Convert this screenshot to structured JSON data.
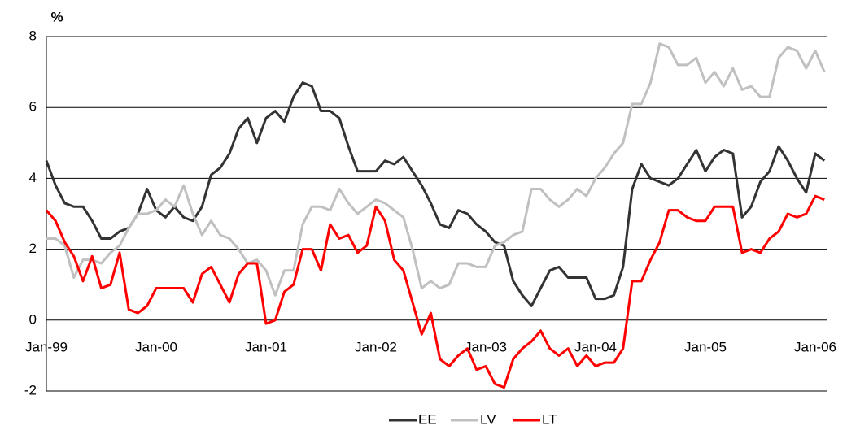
{
  "chart_data": {
    "type": "line",
    "y_label": "%",
    "categories": [
      "Jan-99",
      null,
      null,
      null,
      null,
      null,
      null,
      null,
      null,
      null,
      null,
      null,
      "Jan-00",
      null,
      null,
      null,
      null,
      null,
      null,
      null,
      null,
      null,
      null,
      null,
      "Jan-01",
      null,
      null,
      null,
      null,
      null,
      null,
      null,
      null,
      null,
      null,
      null,
      "Jan-02",
      null,
      null,
      null,
      null,
      null,
      null,
      null,
      null,
      null,
      null,
      null,
      "Jan-03",
      null,
      null,
      null,
      null,
      null,
      null,
      null,
      null,
      null,
      null,
      null,
      "Jan-04",
      null,
      null,
      null,
      null,
      null,
      null,
      null,
      null,
      null,
      null,
      null,
      "Jan-05",
      null,
      null,
      null,
      null,
      null,
      null,
      null,
      null,
      null,
      null,
      null,
      "Jan-06",
      null
    ],
    "series": [
      {
        "name": "EE",
        "color": "#333333",
        "values": [
          4.5,
          3.8,
          3.3,
          3.2,
          3.2,
          2.8,
          2.3,
          2.3,
          2.5,
          2.6,
          3.0,
          3.7,
          3.1,
          2.9,
          3.2,
          2.9,
          2.8,
          3.2,
          4.1,
          4.3,
          4.7,
          5.4,
          5.7,
          5.0,
          5.7,
          5.9,
          5.6,
          6.3,
          6.7,
          6.6,
          5.9,
          5.9,
          5.7,
          4.9,
          4.2,
          4.2,
          4.2,
          4.5,
          4.4,
          4.6,
          4.2,
          3.8,
          3.3,
          2.7,
          2.6,
          3.1,
          3.0,
          2.7,
          2.5,
          2.2,
          2.1,
          1.1,
          0.7,
          0.4,
          0.9,
          1.4,
          1.5,
          1.2,
          1.2,
          1.2,
          0.6,
          0.6,
          0.7,
          1.5,
          3.7,
          4.4,
          4.0,
          3.9,
          3.8,
          4.0,
          4.4,
          4.8,
          4.2,
          4.6,
          4.8,
          4.7,
          2.9,
          3.2,
          3.9,
          4.2,
          4.9,
          4.5,
          4.0,
          3.6,
          4.7,
          4.5
        ]
      },
      {
        "name": "LV",
        "color": "#c0c0c0",
        "values": [
          2.3,
          2.3,
          2.1,
          1.2,
          1.7,
          1.7,
          1.6,
          1.9,
          2.1,
          2.6,
          3.0,
          3.0,
          3.1,
          3.4,
          3.2,
          3.8,
          3.0,
          2.4,
          2.8,
          2.4,
          2.3,
          2.0,
          1.6,
          1.7,
          1.4,
          0.7,
          1.4,
          1.4,
          2.7,
          3.2,
          3.2,
          3.1,
          3.7,
          3.3,
          3.0,
          3.2,
          3.4,
          3.3,
          3.1,
          2.9,
          2.0,
          0.9,
          1.1,
          0.9,
          1.0,
          1.6,
          1.6,
          1.5,
          1.5,
          2.1,
          2.2,
          2.4,
          2.5,
          3.7,
          3.7,
          3.4,
          3.2,
          3.4,
          3.7,
          3.5,
          4.0,
          4.3,
          4.7,
          5.0,
          6.1,
          6.1,
          6.7,
          7.8,
          7.7,
          7.2,
          7.2,
          7.4,
          6.7,
          7.0,
          6.6,
          7.1,
          6.5,
          6.6,
          6.3,
          6.3,
          7.4,
          7.7,
          7.6,
          7.1,
          7.6,
          7.0
        ]
      },
      {
        "name": "LT",
        "color": "#ff0000",
        "values": [
          3.1,
          2.8,
          2.2,
          1.8,
          1.1,
          1.8,
          0.9,
          1.0,
          1.9,
          0.3,
          0.2,
          0.4,
          0.9,
          0.9,
          0.9,
          0.9,
          0.5,
          1.3,
          1.5,
          1.0,
          0.5,
          1.3,
          1.6,
          1.6,
          -0.1,
          0.0,
          0.8,
          1.0,
          2.0,
          2.0,
          1.4,
          2.7,
          2.3,
          2.4,
          1.9,
          2.1,
          3.2,
          2.8,
          1.7,
          1.4,
          0.5,
          -0.4,
          0.2,
          -1.1,
          -1.3,
          -1.0,
          -0.8,
          -1.4,
          -1.3,
          -1.8,
          -1.9,
          -1.1,
          -0.8,
          -0.6,
          -0.3,
          -0.8,
          -1.0,
          -0.8,
          -1.3,
          -1.0,
          -1.3,
          -1.2,
          -1.2,
          -0.8,
          1.1,
          1.1,
          1.7,
          2.2,
          3.1,
          3.1,
          2.9,
          2.8,
          2.8,
          3.2,
          3.2,
          3.2,
          1.9,
          2.0,
          1.9,
          2.3,
          2.5,
          3.0,
          2.9,
          3.0,
          3.5,
          3.4
        ]
      }
    ],
    "ylim": [
      -2,
      8
    ],
    "yticks": [
      -2,
      0,
      2,
      4,
      6,
      8
    ],
    "grid": true,
    "legend": "bottom"
  }
}
